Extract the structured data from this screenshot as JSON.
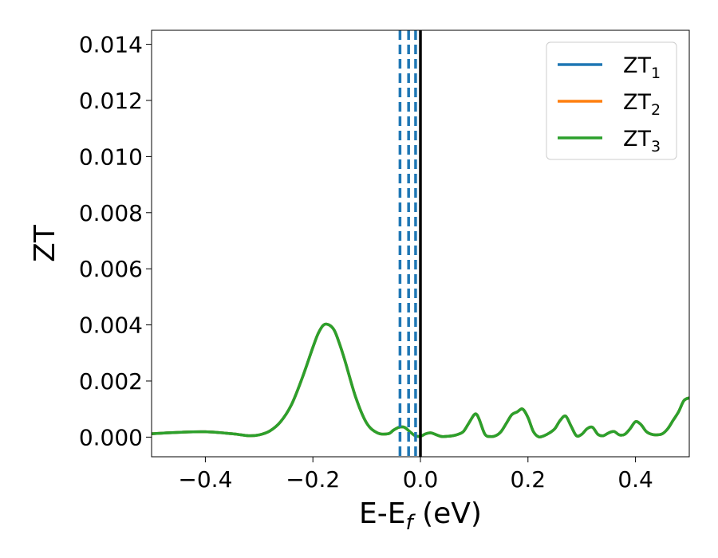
{
  "chart_data": {
    "type": "line",
    "xlabel": "E-E",
    "xlabel_subscript": "f",
    "xlabel_unit": "(eV)",
    "ylabel": "ZT",
    "xlim": [
      -0.5,
      0.5
    ],
    "ylim": [
      -0.0007,
      0.0145
    ],
    "xticks": [
      -0.4,
      -0.2,
      0.0,
      0.2,
      0.4
    ],
    "xtick_labels": [
      "−0.4",
      "−0.2",
      "0.0",
      "0.2",
      "0.4"
    ],
    "yticks": [
      0.0,
      0.002,
      0.004,
      0.006,
      0.008,
      0.01,
      0.012,
      0.014
    ],
    "ytick_labels": [
      "0.000",
      "0.002",
      "0.004",
      "0.006",
      "0.008",
      "0.010",
      "0.012",
      "0.014"
    ],
    "grid": false,
    "legend_position": "top-right",
    "vlines": [
      {
        "x": -0.038,
        "style": "dashed",
        "color": "#1f77b4"
      },
      {
        "x": -0.022,
        "style": "dashed",
        "color": "#1f77b4"
      },
      {
        "x": -0.009,
        "style": "dashed",
        "color": "#1f77b4"
      },
      {
        "x": 0.0,
        "style": "solid",
        "color": "#000000"
      }
    ],
    "series": [
      {
        "name": "ZT",
        "sub": "1",
        "color": "#1f77b4",
        "x": [
          -0.5,
          -0.45,
          -0.4,
          -0.35,
          -0.32,
          -0.3,
          -0.28,
          -0.26,
          -0.24,
          -0.22,
          -0.2,
          -0.19,
          -0.18,
          -0.17,
          -0.16,
          -0.15,
          -0.14,
          -0.12,
          -0.1,
          -0.08,
          -0.06,
          -0.05,
          -0.04,
          -0.03,
          -0.02,
          -0.01,
          0.0,
          0.01,
          0.02,
          0.03,
          0.04,
          0.05,
          0.06,
          0.07,
          0.08,
          0.09,
          0.1,
          0.105,
          0.11,
          0.12,
          0.13,
          0.14,
          0.15,
          0.16,
          0.17,
          0.18,
          0.19,
          0.2,
          0.21,
          0.22,
          0.23,
          0.24,
          0.25,
          0.26,
          0.27,
          0.28,
          0.29,
          0.3,
          0.31,
          0.32,
          0.33,
          0.34,
          0.35,
          0.36,
          0.37,
          0.38,
          0.39,
          0.4,
          0.41,
          0.42,
          0.43,
          0.44,
          0.45,
          0.46,
          0.47,
          0.48,
          0.49,
          0.5
        ],
        "y": [
          0.00012,
          0.00017,
          0.00019,
          0.00012,
          5e-05,
          8e-05,
          0.00022,
          0.00055,
          0.00115,
          0.0021,
          0.0032,
          0.0037,
          0.004,
          0.004,
          0.0038,
          0.0033,
          0.0027,
          0.0014,
          0.0005,
          0.00015,
          0.00012,
          0.00025,
          0.00035,
          0.00035,
          0.0002,
          5e-05,
          3e-05,
          0.00012,
          0.00015,
          8e-05,
          2e-05,
          3e-05,
          5e-05,
          0.0001,
          0.0002,
          0.0005,
          0.0008,
          0.0008,
          0.0006,
          0.0001,
          2e-05,
          5e-05,
          0.0002,
          0.0005,
          0.0008,
          0.0009,
          0.001,
          0.0007,
          0.0002,
          1e-05,
          5e-05,
          0.00015,
          0.0003,
          0.0006,
          0.00075,
          0.0004,
          5e-05,
          0.0001,
          0.0003,
          0.00035,
          0.0001,
          5e-05,
          0.00015,
          0.0002,
          8e-05,
          0.0001,
          0.0003,
          0.00055,
          0.00045,
          0.0002,
          0.0001,
          8e-05,
          0.00012,
          0.0003,
          0.0006,
          0.0009,
          0.0013,
          0.0014
        ]
      },
      {
        "name": "ZT",
        "sub": "2",
        "color": "#ff7f0e",
        "x": [
          -0.5,
          -0.45,
          -0.4,
          -0.35,
          -0.32,
          -0.3,
          -0.28,
          -0.26,
          -0.24,
          -0.22,
          -0.2,
          -0.19,
          -0.18,
          -0.17,
          -0.16,
          -0.15,
          -0.14,
          -0.12,
          -0.1,
          -0.08,
          -0.06,
          -0.05,
          -0.04,
          -0.03,
          -0.02,
          -0.01,
          0.0,
          0.01,
          0.02,
          0.03,
          0.04,
          0.05,
          0.06,
          0.07,
          0.08,
          0.09,
          0.1,
          0.105,
          0.11,
          0.12,
          0.13,
          0.14,
          0.15,
          0.16,
          0.17,
          0.18,
          0.19,
          0.2,
          0.21,
          0.22,
          0.23,
          0.24,
          0.25,
          0.26,
          0.27,
          0.28,
          0.29,
          0.3,
          0.31,
          0.32,
          0.33,
          0.34,
          0.35,
          0.36,
          0.37,
          0.38,
          0.39,
          0.4,
          0.41,
          0.42,
          0.43,
          0.44,
          0.45,
          0.46,
          0.47,
          0.48,
          0.49,
          0.5
        ],
        "y": [
          0.00012,
          0.00017,
          0.00019,
          0.00012,
          5e-05,
          8e-05,
          0.00022,
          0.00055,
          0.00115,
          0.0021,
          0.0032,
          0.0037,
          0.004,
          0.004,
          0.0038,
          0.0033,
          0.0027,
          0.0014,
          0.0005,
          0.00015,
          0.00012,
          0.00025,
          0.00035,
          0.00035,
          0.0002,
          5e-05,
          3e-05,
          0.00012,
          0.00015,
          8e-05,
          2e-05,
          3e-05,
          5e-05,
          0.0001,
          0.0002,
          0.0005,
          0.0008,
          0.0008,
          0.0006,
          0.0001,
          2e-05,
          5e-05,
          0.0002,
          0.0005,
          0.0008,
          0.0009,
          0.001,
          0.0007,
          0.0002,
          1e-05,
          5e-05,
          0.00015,
          0.0003,
          0.0006,
          0.00075,
          0.0004,
          5e-05,
          0.0001,
          0.0003,
          0.00035,
          0.0001,
          5e-05,
          0.00015,
          0.0002,
          8e-05,
          0.0001,
          0.0003,
          0.00055,
          0.00045,
          0.0002,
          0.0001,
          8e-05,
          0.00012,
          0.0003,
          0.0006,
          0.0009,
          0.0013,
          0.0014
        ]
      },
      {
        "name": "ZT",
        "sub": "3",
        "color": "#2ca02c",
        "x": [
          -0.5,
          -0.45,
          -0.4,
          -0.35,
          -0.32,
          -0.3,
          -0.28,
          -0.26,
          -0.24,
          -0.22,
          -0.2,
          -0.19,
          -0.18,
          -0.17,
          -0.16,
          -0.15,
          -0.14,
          -0.12,
          -0.1,
          -0.08,
          -0.06,
          -0.05,
          -0.04,
          -0.03,
          -0.02,
          -0.01,
          0.0,
          0.01,
          0.02,
          0.03,
          0.04,
          0.05,
          0.06,
          0.07,
          0.08,
          0.09,
          0.1,
          0.105,
          0.11,
          0.12,
          0.13,
          0.14,
          0.15,
          0.16,
          0.17,
          0.18,
          0.19,
          0.2,
          0.21,
          0.22,
          0.23,
          0.24,
          0.25,
          0.26,
          0.27,
          0.28,
          0.29,
          0.3,
          0.31,
          0.32,
          0.33,
          0.34,
          0.35,
          0.36,
          0.37,
          0.38,
          0.39,
          0.4,
          0.41,
          0.42,
          0.43,
          0.44,
          0.45,
          0.46,
          0.47,
          0.48,
          0.49,
          0.5
        ],
        "y": [
          0.00012,
          0.00017,
          0.00019,
          0.00012,
          5e-05,
          8e-05,
          0.00022,
          0.00055,
          0.00115,
          0.0021,
          0.0032,
          0.0037,
          0.004,
          0.004,
          0.0038,
          0.0033,
          0.0027,
          0.0014,
          0.0005,
          0.00015,
          0.00012,
          0.00025,
          0.00035,
          0.00035,
          0.0002,
          5e-05,
          3e-05,
          0.00012,
          0.00015,
          8e-05,
          2e-05,
          3e-05,
          5e-05,
          0.0001,
          0.0002,
          0.0005,
          0.0008,
          0.0008,
          0.0006,
          0.0001,
          2e-05,
          5e-05,
          0.0002,
          0.0005,
          0.0008,
          0.0009,
          0.001,
          0.0007,
          0.0002,
          1e-05,
          5e-05,
          0.00015,
          0.0003,
          0.0006,
          0.00075,
          0.0004,
          5e-05,
          0.0001,
          0.0003,
          0.00035,
          0.0001,
          5e-05,
          0.00015,
          0.0002,
          8e-05,
          0.0001,
          0.0003,
          0.00055,
          0.00045,
          0.0002,
          0.0001,
          8e-05,
          0.00012,
          0.0003,
          0.0006,
          0.0009,
          0.0013,
          0.0014
        ]
      }
    ]
  }
}
